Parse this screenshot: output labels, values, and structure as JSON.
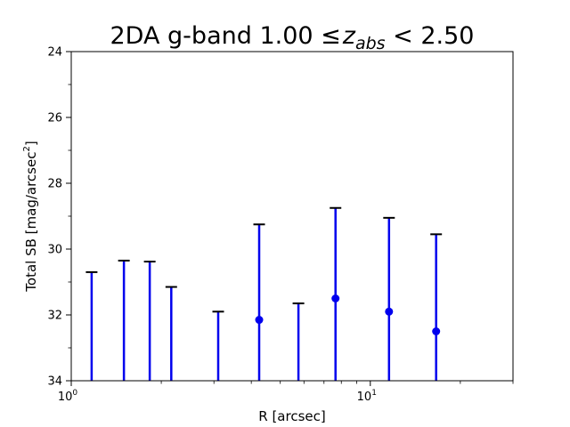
{
  "chart_data": {
    "type": "scatter",
    "title": {
      "prefix": "2DA g-band 1.00 ",
      "leq": "≤",
      "var": "z",
      "sub": "abs",
      "suffix": " < 2.50"
    },
    "xlabel": "R [arcsec]",
    "ylabel": {
      "text": "Total SB [mag/arcsec",
      "sup": "2",
      "close": "]"
    },
    "x_scale": "log",
    "xlim": [
      1,
      30
    ],
    "ylim": [
      34,
      24
    ],
    "y_inverted": true,
    "x_major_ticks": [
      {
        "value": 1,
        "base": "10",
        "exp": "0"
      },
      {
        "value": 10,
        "base": "10",
        "exp": "1"
      }
    ],
    "x_minor_ticks": [
      2,
      3,
      4,
      5,
      6,
      7,
      8,
      9,
      20,
      30
    ],
    "y_ticks": [
      24,
      26,
      28,
      30,
      32,
      34
    ],
    "y_minor_ticks": [
      25,
      27,
      29,
      31,
      33
    ],
    "grid": false,
    "color": "#0000ee",
    "upper_limits": [
      {
        "x": 1.17,
        "y": 30.7
      },
      {
        "x": 1.5,
        "y": 30.35
      },
      {
        "x": 1.83,
        "y": 30.38
      },
      {
        "x": 2.16,
        "y": 31.15
      },
      {
        "x": 3.1,
        "y": 31.9
      },
      {
        "x": 5.75,
        "y": 31.65
      }
    ],
    "points": [
      {
        "x": 4.25,
        "y": 32.15,
        "err_top": 29.25
      },
      {
        "x": 7.65,
        "y": 31.5,
        "err_top": 28.75
      },
      {
        "x": 11.55,
        "y": 31.9,
        "err_top": 29.05
      },
      {
        "x": 16.6,
        "y": 32.5,
        "err_top": 29.55
      }
    ]
  }
}
